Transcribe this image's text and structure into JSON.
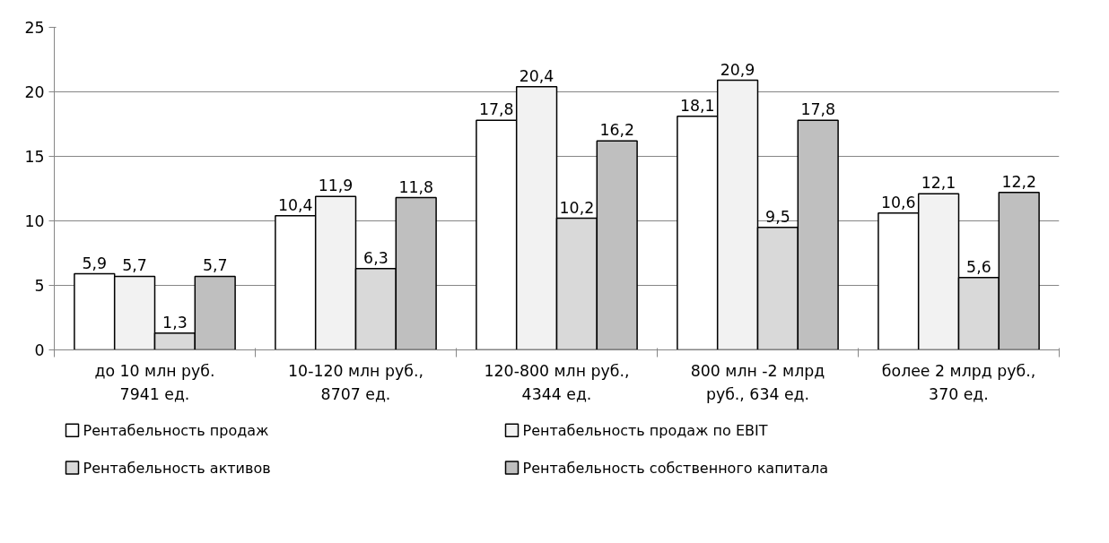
{
  "chart_data": {
    "type": "bar",
    "categories": [
      "до 10 млн руб.\n7941 ед.",
      "10-120 млн руб.,\n8707 ед.",
      "120-800 млн руб.,\n4344 ед.",
      "800 млн -2 млрд\nруб., 634 ед.",
      "более 2 млрд руб.,\n370 ед."
    ],
    "series": [
      {
        "name": "Рентабельность продаж",
        "color": "#ffffff",
        "values": [
          5.9,
          10.4,
          17.8,
          18.1,
          10.6
        ],
        "value_labels": [
          "5,9",
          "10,4",
          "17,8",
          "18,1",
          "10,6"
        ]
      },
      {
        "name": "Рентабельность продаж по EBIT",
        "color": "#f2f2f2",
        "values": [
          5.7,
          11.9,
          20.4,
          20.9,
          12.1
        ],
        "value_labels": [
          "5,7",
          "11,9",
          "20,4",
          "20,9",
          "12,1"
        ]
      },
      {
        "name": "Рентабельность активов",
        "color": "#d9d9d9",
        "values": [
          1.3,
          6.3,
          10.2,
          9.5,
          5.6
        ],
        "value_labels": [
          "1,3",
          "6,3",
          "10,2",
          "9,5",
          "5,6"
        ]
      },
      {
        "name": "Рентабельность собственного капитала",
        "color": "#bfbfbf",
        "values": [
          5.7,
          11.8,
          16.2,
          17.8,
          12.2
        ],
        "value_labels": [
          "5,7",
          "11,8",
          "16,2",
          "17,8",
          "12,2"
        ]
      }
    ],
    "ylim": [
      0,
      25
    ],
    "yticks": [
      0,
      5,
      10,
      15,
      20,
      25
    ],
    "grid": "y",
    "legend": "bottom"
  }
}
